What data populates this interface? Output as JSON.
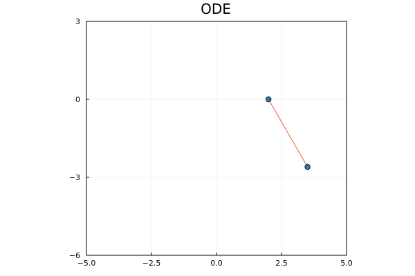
{
  "chart_data": {
    "type": "scatter",
    "title": "ODE",
    "xlabel": "",
    "ylabel": "",
    "xlim": [
      -5.0,
      5.0
    ],
    "ylim": [
      -6,
      3
    ],
    "xticks": [
      -5.0,
      -2.5,
      0.0,
      2.5,
      5.0
    ],
    "xtick_labels": [
      "−5.0",
      "−2.5",
      "0.0",
      "2.5",
      "5.0"
    ],
    "yticks": [
      -6,
      -3,
      0,
      3
    ],
    "ytick_labels": [
      "−6",
      "−3",
      "0",
      "3"
    ],
    "grid": true,
    "legend": "none",
    "series": [
      {
        "kind": "points",
        "color": "#2a7ab9",
        "x": [
          2.0,
          3.5
        ],
        "y": [
          0.0,
          -2.6
        ]
      },
      {
        "kind": "line",
        "color": "#e2603b",
        "x": [
          2.0,
          3.5
        ],
        "y": [
          0.0,
          -2.6
        ]
      }
    ]
  }
}
